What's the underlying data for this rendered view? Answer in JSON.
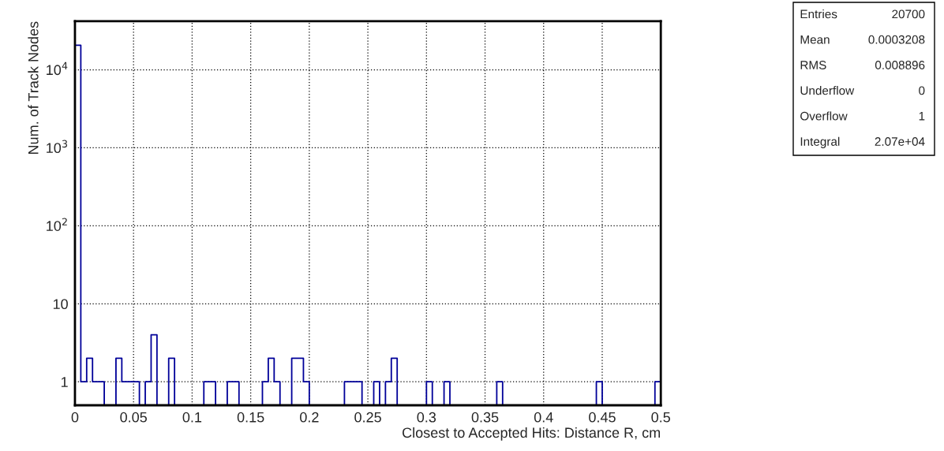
{
  "chart_data": {
    "type": "histogram",
    "xlabel": "Closest to Accepted Hits: Distance R, cm",
    "ylabel": "Num. of Track Nodes",
    "bins": [
      0,
      0.005,
      0.01,
      0.015,
      0.02,
      0.025,
      0.03,
      0.035,
      0.04,
      0.045,
      0.05,
      0.055,
      0.06,
      0.065,
      0.07,
      0.075,
      0.08,
      0.085,
      0.09,
      0.095,
      0.1,
      0.105,
      0.11,
      0.115,
      0.12,
      0.125,
      0.13,
      0.135,
      0.14,
      0.145,
      0.15,
      0.155,
      0.16,
      0.165,
      0.17,
      0.175,
      0.18,
      0.185,
      0.19,
      0.195,
      0.2,
      0.205,
      0.21,
      0.215,
      0.22,
      0.225,
      0.23,
      0.235,
      0.24,
      0.245,
      0.25,
      0.255,
      0.26,
      0.265,
      0.27,
      0.275,
      0.28,
      0.285,
      0.29,
      0.295,
      0.3,
      0.305,
      0.31,
      0.315,
      0.32,
      0.325,
      0.33,
      0.335,
      0.34,
      0.345,
      0.35,
      0.355,
      0.36,
      0.365,
      0.37,
      0.375,
      0.38,
      0.385,
      0.39,
      0.395,
      0.4,
      0.405,
      0.41,
      0.415,
      0.42,
      0.425,
      0.43,
      0.435,
      0.44,
      0.445,
      0.45,
      0.455,
      0.46,
      0.465,
      0.47,
      0.475,
      0.48,
      0.485,
      0.49,
      0.495,
      0.5
    ],
    "values": [
      20660,
      1,
      2,
      1,
      1,
      null,
      null,
      2,
      1,
      1,
      1,
      null,
      1,
      4,
      null,
      null,
      2,
      null,
      null,
      null,
      null,
      null,
      1,
      1,
      null,
      null,
      1,
      1,
      null,
      null,
      null,
      null,
      1,
      2,
      1,
      null,
      null,
      2,
      2,
      1,
      null,
      null,
      null,
      null,
      null,
      null,
      1,
      1,
      1,
      null,
      null,
      1,
      null,
      1,
      2,
      null,
      null,
      null,
      null,
      null,
      1,
      null,
      null,
      1,
      null,
      null,
      null,
      null,
      null,
      null,
      null,
      null,
      1,
      null,
      null,
      null,
      null,
      null,
      null,
      null,
      null,
      null,
      null,
      null,
      null,
      null,
      null,
      null,
      null,
      1,
      null,
      null,
      null,
      null,
      null,
      null,
      null,
      null,
      null,
      1
    ],
    "color": "#000099",
    "log": true,
    "xlim": [
      0,
      0.5
    ],
    "xticks": [
      0,
      0.05,
      0.1,
      0.15,
      0.2,
      0.25,
      0.3,
      0.35,
      0.4,
      0.45,
      0.5
    ],
    "ylim": [
      0.5,
      42000
    ],
    "yticks": [
      1,
      10,
      {
        "value": 100,
        "label": "10$^{2}$"
      },
      {
        "value": 1000,
        "label": "10$^{3}$"
      },
      {
        "value": 10000,
        "label": "10$^{4}$"
      }
    ],
    "grid": true,
    "line_style": "solid",
    "annotations": [
      "Entries",
      "20700",
      "Mean",
      "0.0003208",
      "RMS",
      "0.008896",
      "Underflow",
      "0",
      "Overflow",
      "1",
      "Integral",
      "2.07e+04"
    ]
  }
}
